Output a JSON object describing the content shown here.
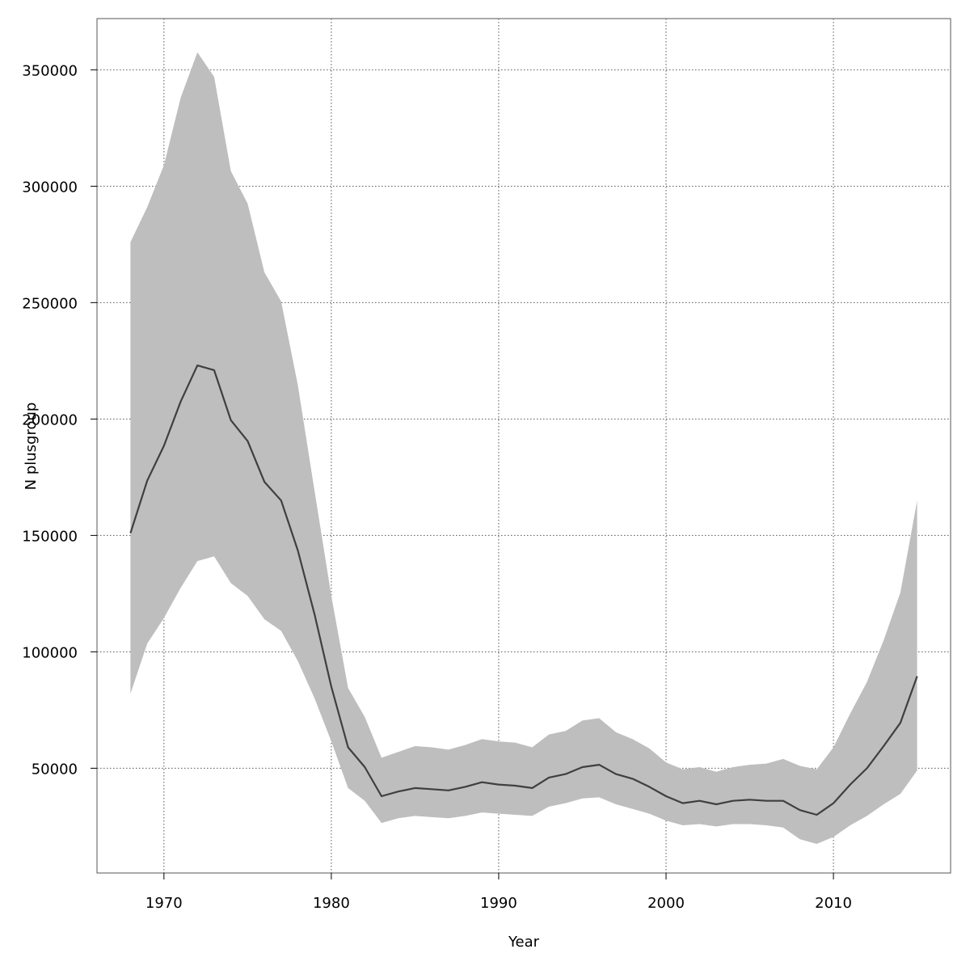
{
  "chart_data": {
    "type": "area",
    "xlabel": "Year",
    "ylabel": "N plusgroup",
    "xlim": [
      1966,
      2017
    ],
    "ylim": [
      5000,
      372000
    ],
    "xticks": [
      1970,
      1980,
      1990,
      2000,
      2010
    ],
    "yticks": [
      50000,
      100000,
      150000,
      200000,
      250000,
      300000,
      350000
    ],
    "grid": true,
    "colors": {
      "band": "#bebebe",
      "line": "#3f3f3f",
      "grid": "#555555",
      "frame": "#555555"
    },
    "x": [
      1968,
      1969,
      1970,
      1971,
      1972,
      1973,
      1974,
      1975,
      1976,
      1977,
      1978,
      1979,
      1980,
      1981,
      1982,
      1983,
      1984,
      1985,
      1986,
      1987,
      1988,
      1989,
      1990,
      1991,
      1992,
      1993,
      1994,
      1995,
      1996,
      1997,
      1998,
      1999,
      2000,
      2001,
      2002,
      2003,
      2004,
      2005,
      2006,
      2007,
      2008,
      2009,
      2010,
      2011,
      2012,
      2013,
      2014,
      2015
    ],
    "series": [
      {
        "role": "median",
        "values": [
          151000,
          173500,
          188500,
          207500,
          223000,
          221000,
          199500,
          190500,
          173000,
          165000,
          143500,
          116000,
          85000,
          59000,
          50500,
          38000,
          40000,
          41500,
          41000,
          40500,
          42000,
          44000,
          43000,
          42500,
          41500,
          46000,
          47500,
          50500,
          51500,
          47500,
          45500,
          42000,
          38000,
          35000,
          36000,
          34500,
          36000,
          36500,
          36000,
          36000,
          32000,
          30000,
          35000,
          43000,
          50000,
          59500,
          69500,
          89500
        ]
      },
      {
        "role": "upper",
        "values": [
          276000,
          291000,
          309000,
          338000,
          357500,
          347000,
          306500,
          292500,
          263000,
          250500,
          214500,
          169000,
          124000,
          84500,
          72000,
          54500,
          57000,
          59500,
          59000,
          58000,
          60000,
          62500,
          61500,
          61000,
          59000,
          64500,
          66000,
          70500,
          71500,
          65500,
          62500,
          58500,
          52500,
          49500,
          50500,
          48500,
          50500,
          51500,
          52000,
          54000,
          51000,
          49500,
          59000,
          73500,
          87000,
          105000,
          125500,
          165000
        ]
      },
      {
        "role": "lower",
        "values": [
          82000,
          103500,
          114500,
          127500,
          139000,
          141000,
          129500,
          124000,
          114000,
          109000,
          96000,
          80000,
          61500,
          41500,
          36000,
          26500,
          28500,
          29500,
          29000,
          28500,
          29500,
          31000,
          30500,
          30000,
          29500,
          33500,
          35000,
          37000,
          37500,
          34500,
          32500,
          30500,
          27500,
          25500,
          26000,
          25000,
          26000,
          26000,
          25500,
          24500,
          19500,
          17500,
          20500,
          25500,
          29500,
          34500,
          39000,
          49000
        ]
      }
    ]
  }
}
